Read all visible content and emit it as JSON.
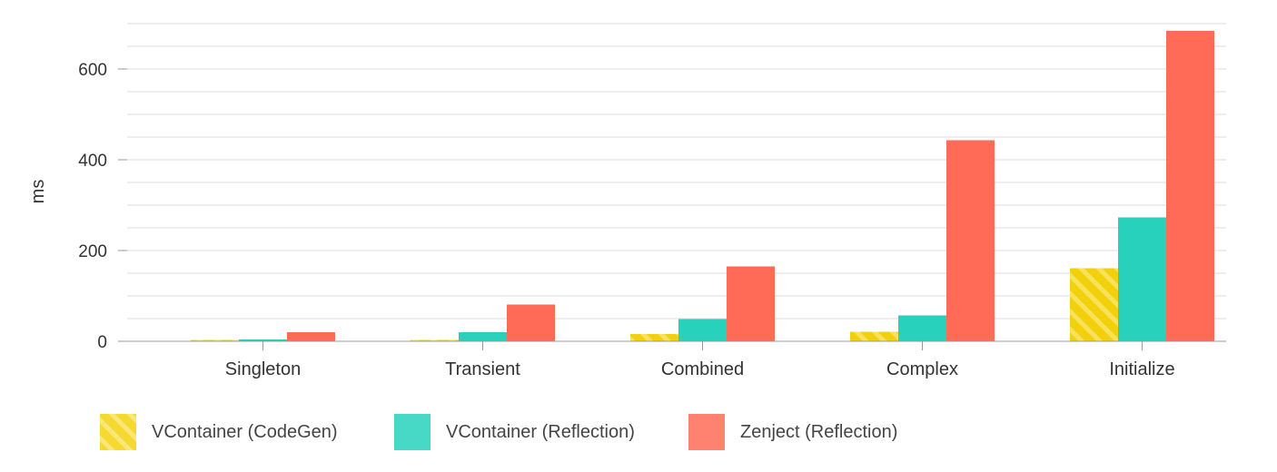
{
  "chart_data": {
    "type": "bar",
    "title": "",
    "xlabel": "",
    "ylabel": "ms",
    "ylim": [
      0,
      700
    ],
    "yticks": [
      0,
      200,
      400,
      600
    ],
    "grid": true,
    "legend_position": "bottom-left",
    "categories": [
      "Singleton",
      "Transient",
      "Combined",
      "Complex",
      "Initialize"
    ],
    "series": [
      {
        "name": "VContainer (CodeGen)",
        "values": [
          3,
          3,
          16,
          21,
          161
        ],
        "color": "#f2d10c",
        "pattern": "diagonal-stripes"
      },
      {
        "name": "VContainer (Reflection)",
        "values": [
          4,
          20,
          49,
          57,
          273
        ],
        "color": "#27d1bc"
      },
      {
        "name": "Zenject (Reflection)",
        "values": [
          20,
          81,
          165,
          443,
          684
        ],
        "color": "#ff6b57"
      }
    ]
  }
}
